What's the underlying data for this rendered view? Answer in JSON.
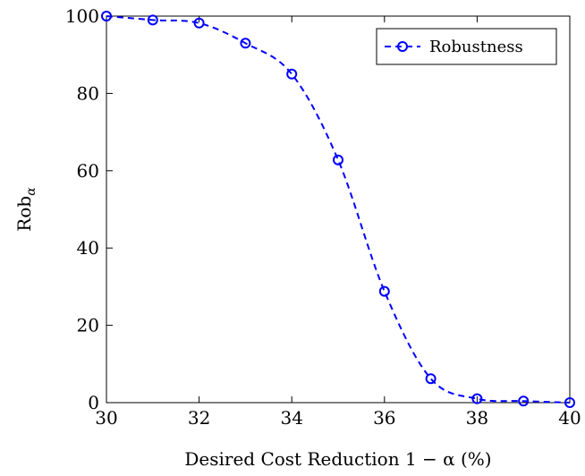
{
  "chart_data": {
    "type": "line",
    "xlabel": "Desired Cost Reduction 1 − α (%)",
    "ylabel_main": "Rob",
    "ylabel_sub": "α",
    "xlim": [
      30,
      40
    ],
    "ylim": [
      0,
      100
    ],
    "x_ticks": [
      30,
      32,
      34,
      36,
      38,
      40
    ],
    "y_ticks": [
      0,
      20,
      40,
      60,
      80,
      100
    ],
    "grid": false,
    "legend_position": "top-right",
    "series": [
      {
        "name": "Robustness",
        "color": "#0000ff",
        "line_style": "dashed",
        "marker": "open-circle",
        "x": [
          30,
          31,
          32,
          33,
          34,
          35,
          36,
          37,
          38,
          39,
          40
        ],
        "y": [
          100,
          99,
          98.2,
          93,
          85,
          62.8,
          28.8,
          6.2,
          1,
          0.4,
          0
        ]
      }
    ]
  }
}
